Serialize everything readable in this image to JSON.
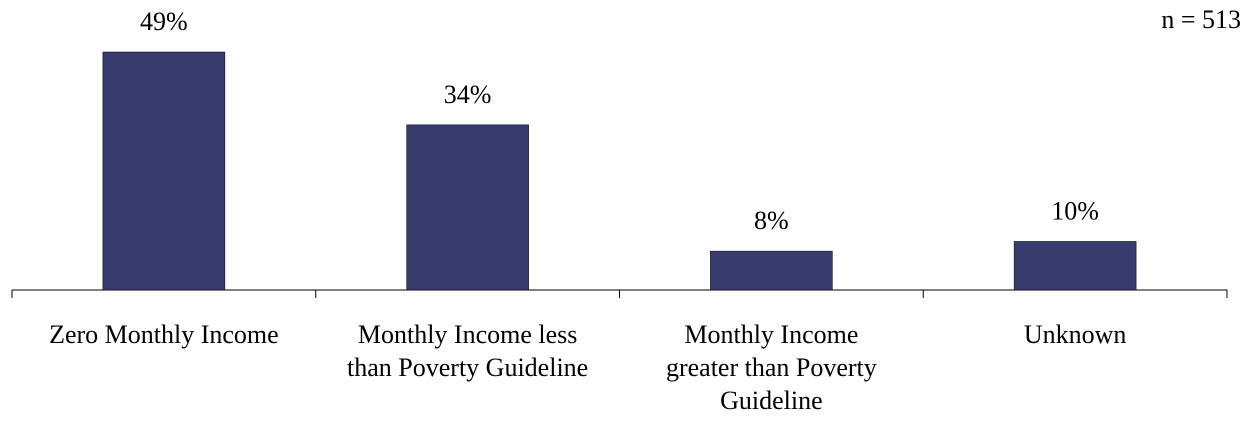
{
  "chart_data": {
    "type": "bar",
    "annotation": "n = 513",
    "categories": [
      "Zero Monthly Income",
      "Monthly Income less\nthan Poverty Guideline",
      "Monthly Income\ngreater than Poverty\nGuideline",
      "Unknown"
    ],
    "values": [
      49,
      34,
      8,
      10
    ],
    "value_labels": [
      "49%",
      "34%",
      "8%",
      "10%"
    ],
    "color": "#373b6d"
  }
}
